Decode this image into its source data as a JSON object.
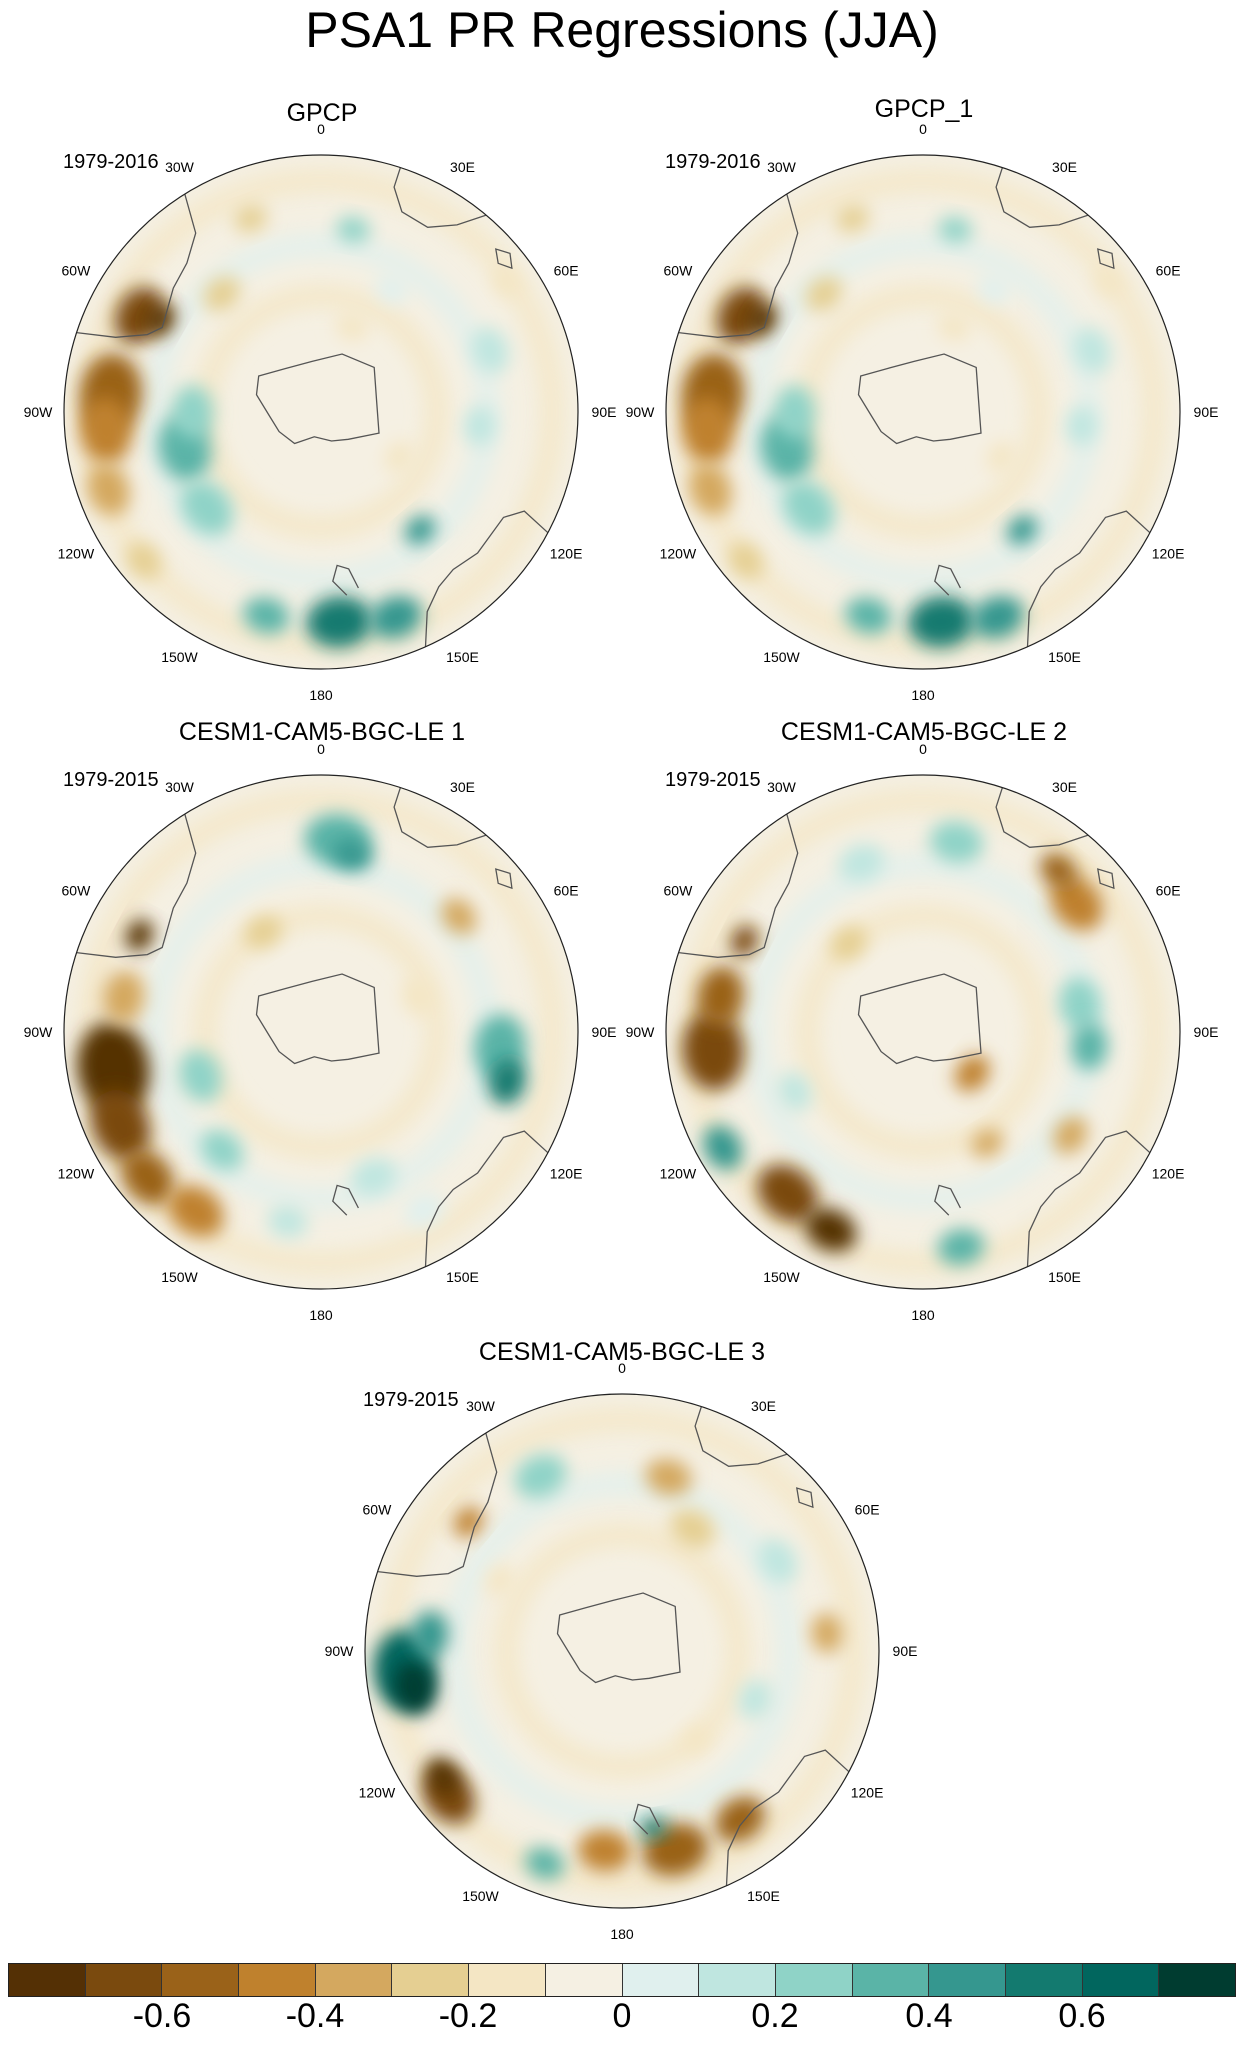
{
  "title": "PSA1 PR Regressions (JJA)",
  "panels": [
    {
      "title": "GPCP",
      "period": "1979-2016",
      "pattern": "obs"
    },
    {
      "title": "GPCP_1",
      "period": "1979-2016",
      "pattern": "obs"
    },
    {
      "title": "CESM1-CAM5-BGC-LE 1",
      "period": "1979-2015",
      "pattern": "le1"
    },
    {
      "title": "CESM1-CAM5-BGC-LE 2",
      "period": "1979-2015",
      "pattern": "le2"
    },
    {
      "title": "CESM1-CAM5-BGC-LE 3",
      "period": "1979-2015",
      "pattern": "le3"
    }
  ],
  "longitude_labels": [
    "0",
    "30E",
    "60E",
    "90E",
    "120E",
    "150E",
    "180",
    "150W",
    "120W",
    "90W",
    "60W",
    "30W"
  ],
  "colorbar": {
    "colors": [
      "#543005",
      "#7a4a0e",
      "#9a6219",
      "#bf812d",
      "#d4a85f",
      "#e5cf92",
      "#f4e6c4",
      "#f5f0e3",
      "#e0f0ee",
      "#bfe6e0",
      "#8fd3c7",
      "#5ab4a7",
      "#35978f",
      "#137a6f",
      "#01665e",
      "#003c30"
    ],
    "tick_labels": [
      "-0.6",
      "-0.4",
      "-0.2",
      "0",
      "0.2",
      "0.4",
      "0.6"
    ]
  }
}
